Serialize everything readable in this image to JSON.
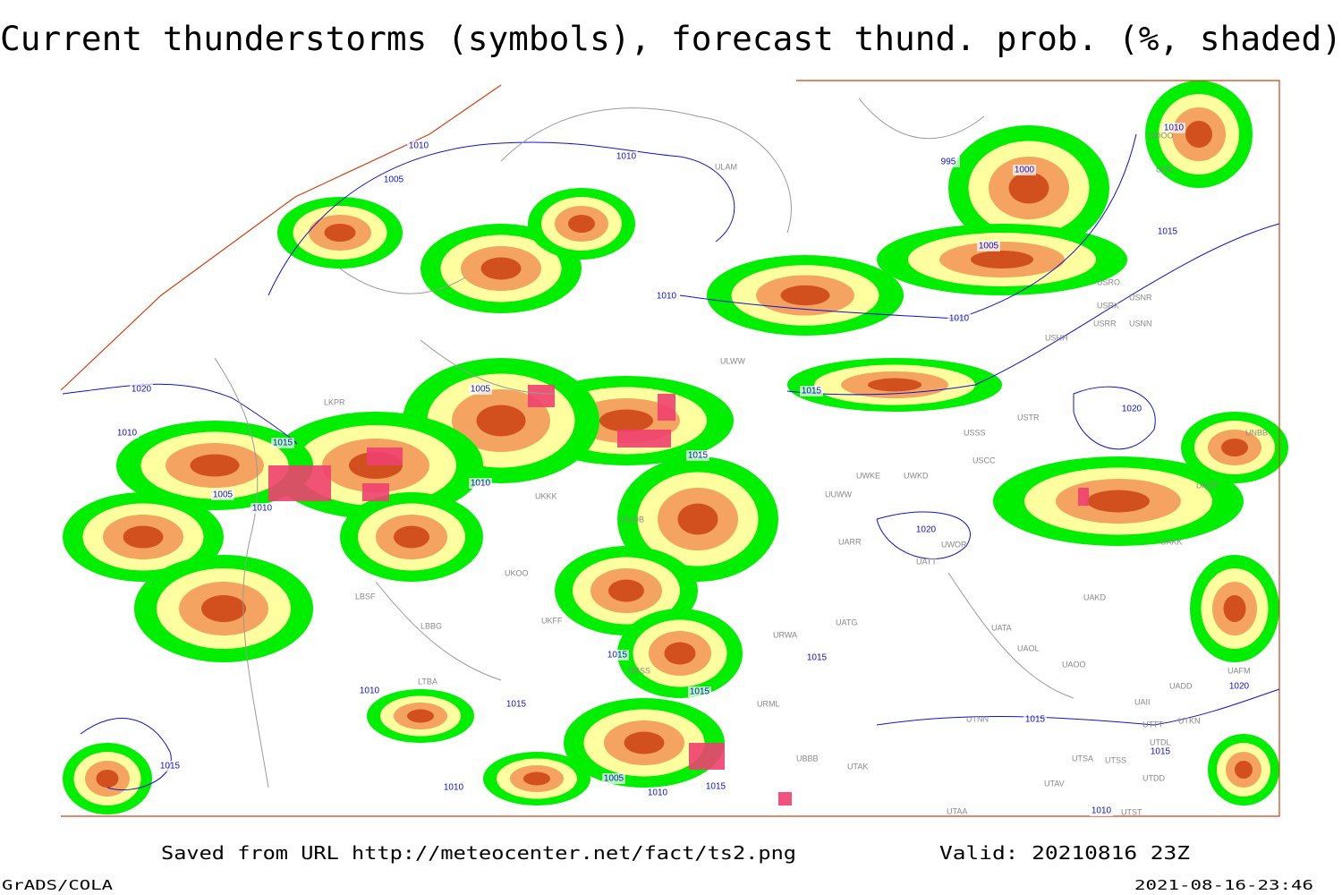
{
  "title": "Current thunderstorms (symbols), forecast thund. prob. (%, shaded)",
  "footer": {
    "saved": "Saved from URL http://meteocenter.net/fact/ts2.png",
    "valid": "Valid: 20210816 23Z",
    "credit": "GrADS/COLA",
    "timestamp": "2021-08-16-23:46"
  },
  "isobar_labels": [
    "1010",
    "1010",
    "1005",
    "995",
    "1000",
    "1010",
    "1015",
    "1005",
    "1010",
    "1010",
    "1005",
    "1015",
    "1020",
    "1010",
    "1015",
    "1015",
    "1010",
    "1005",
    "1010",
    "1020",
    "1020",
    "1015",
    "1015",
    "1015",
    "1020",
    "1010",
    "1015",
    "1015",
    "1015",
    "1015",
    "1010",
    "1005",
    "1010",
    "1015",
    "1010"
  ],
  "stations": [
    "ULWW",
    "UUWW",
    "UWKE",
    "UWKD",
    "USSS",
    "USCC",
    "USTR",
    "USHH",
    "USRR",
    "USNN",
    "USRK",
    "USNR",
    "USRO",
    "UUOB",
    "UARR",
    "UWOR",
    "UATT",
    "UAKD",
    "UATG",
    "UATA",
    "UAOL",
    "UAOO",
    "URWA",
    "URML",
    "UTNN",
    "UBBB",
    "UTAK",
    "UTSA",
    "UTSS",
    "UTAV",
    "UTAA",
    "UTST",
    "LKPR",
    "LBSF",
    "LBBG",
    "LTBA",
    "UKOO",
    "UKKK",
    "UKFF",
    "URSS",
    "ULAM",
    "UOOO",
    "UOII",
    "UAKK",
    "UASP",
    "UNBB",
    "UADD",
    "UAII",
    "UTDL",
    "UTTT",
    "UTKN",
    "UAFM",
    "UTDD"
  ]
}
